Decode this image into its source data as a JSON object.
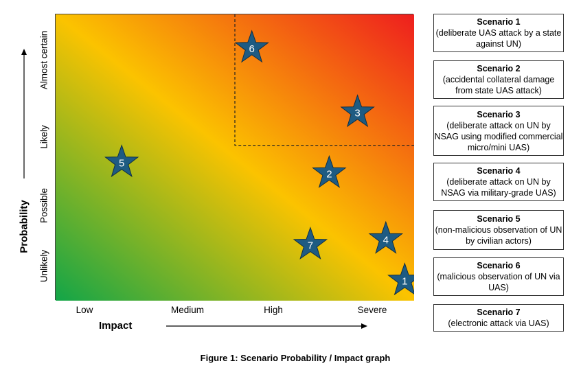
{
  "chart_data": {
    "type": "scatter",
    "title": "",
    "xlabel": "Impact",
    "ylabel": "Probability",
    "x_categories": [
      "Low",
      "Medium",
      "High",
      "Severe"
    ],
    "y_categories": [
      "Unlikely",
      "Possible",
      "Likely",
      "Almost certain"
    ],
    "xlim": [
      0.5,
      4.3
    ],
    "ylim": [
      0.5,
      4.5
    ],
    "high_risk_region": {
      "x_from": 2.4,
      "y_from": 2.67
    },
    "points": [
      {
        "label": "1",
        "x": 4.2,
        "y": 0.8
      },
      {
        "label": "2",
        "x": 3.4,
        "y": 2.3
      },
      {
        "label": "3",
        "x": 3.7,
        "y": 3.15
      },
      {
        "label": "4",
        "x": 4.0,
        "y": 1.38
      },
      {
        "label": "5",
        "x": 1.2,
        "y": 2.45
      },
      {
        "label": "6",
        "x": 2.58,
        "y": 4.05
      },
      {
        "label": "7",
        "x": 3.2,
        "y": 1.3
      }
    ],
    "marker": "star",
    "marker_color": "#1e5b82",
    "gradient_colors": [
      "#12a548",
      "#fbc300",
      "#ee1e1e"
    ]
  },
  "scenarios": [
    {
      "title": "Scenario 1",
      "desc": "(deliberate UAS attack by a state against UN)"
    },
    {
      "title": "Scenario 2",
      "desc": "(accidental collateral damage from state UAS attack)"
    },
    {
      "title": "Scenario 3",
      "desc": "(deliberate attack on UN by NSAG using modified commercial micro/mini UAS)"
    },
    {
      "title": "Scenario 4",
      "desc": "(deliberate attack on UN by NSAG via military-grade UAS)"
    },
    {
      "title": "Scenario 5",
      "desc": "(non-malicious observation of UN by civilian actors)"
    },
    {
      "title": "Scenario 6",
      "desc": "(malicious observation of UN via UAS)"
    },
    {
      "title": "Scenario 7",
      "desc": "(electronic attack via UAS)"
    }
  ],
  "caption": "Figure 1: Scenario Probability / Impact graph"
}
